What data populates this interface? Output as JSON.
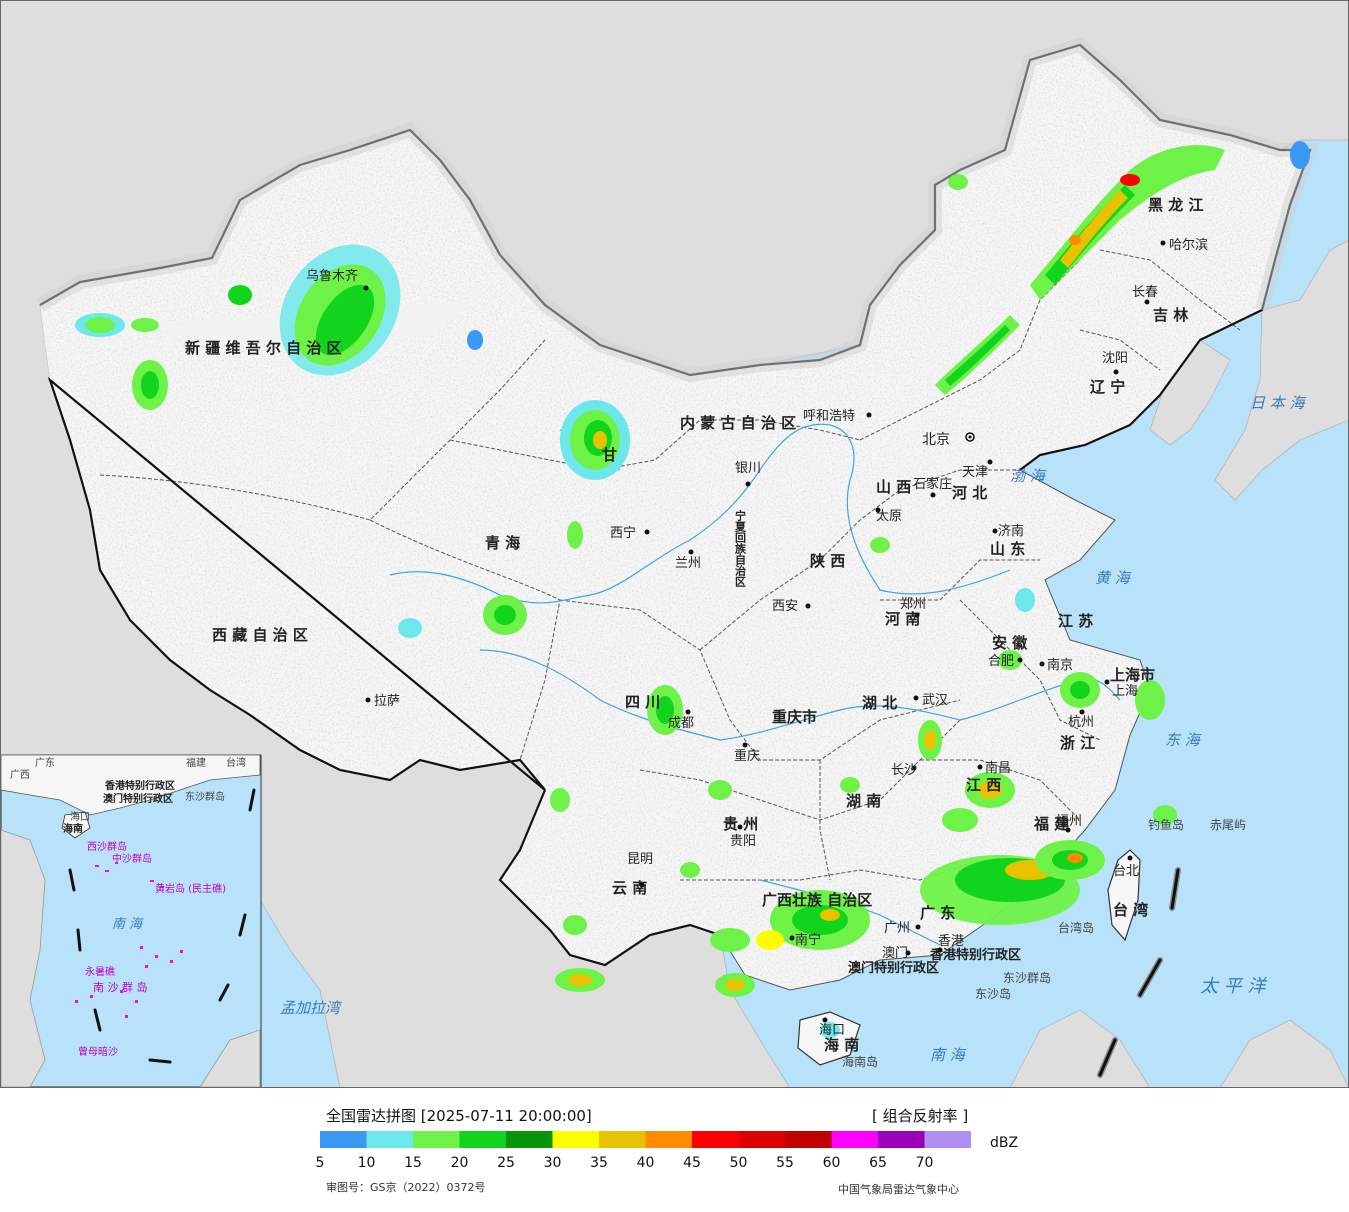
{
  "colors": {
    "sea": "#b8e2f9",
    "foreign_land": "#dedede",
    "china_land": "#f6f6f6",
    "border": "#111111"
  },
  "provinces": [
    {
      "id": "xinjiang",
      "label": "新 疆 维 吾 尔 自 治 区"
    },
    {
      "id": "xizang",
      "label": "西 藏 自 治 区"
    },
    {
      "id": "qinghai",
      "label": "青 海"
    },
    {
      "id": "gansu",
      "label": "甘"
    },
    {
      "id": "sichuan",
      "label": "四 川"
    },
    {
      "id": "yunnan",
      "label": "云 南"
    },
    {
      "id": "guizhou",
      "label": "贵 州"
    },
    {
      "id": "chongqing",
      "label": "重庆市"
    },
    {
      "id": "shaanxi",
      "label": "陕 西"
    },
    {
      "id": "shanxi",
      "label": "山 西"
    },
    {
      "id": "henan",
      "label": "河 南"
    },
    {
      "id": "hubei",
      "label": "湖 北"
    },
    {
      "id": "hunan",
      "label": "湖 南"
    },
    {
      "id": "jiangxi",
      "label": "江 西"
    },
    {
      "id": "anhui",
      "label": "安 徽"
    },
    {
      "id": "jiangsu",
      "label": "江 苏"
    },
    {
      "id": "zhejiang",
      "label": "浙 江"
    },
    {
      "id": "fujian",
      "label": "福 建"
    },
    {
      "id": "guangdong",
      "label": "广 东"
    },
    {
      "id": "guangxi",
      "label": "广西壮族 自治区"
    },
    {
      "id": "hainan",
      "label": "海 南"
    },
    {
      "id": "shandong",
      "label": "山 东"
    },
    {
      "id": "hebei",
      "label": "河 北"
    },
    {
      "id": "neimenggu",
      "label": "内 蒙 古 自 治 区"
    },
    {
      "id": "heilongjiang",
      "label": "黑 龙 江"
    },
    {
      "id": "jilin",
      "label": "吉 林"
    },
    {
      "id": "liaoning",
      "label": "辽 宁"
    },
    {
      "id": "ningxia",
      "label": "宁夏回族自治区"
    },
    {
      "id": "taiwan",
      "label": "台 湾"
    },
    {
      "id": "shanghai",
      "label": "上海市"
    },
    {
      "id": "hongkong",
      "label": "香港特别行政区"
    },
    {
      "id": "macau",
      "label": "澳门特别行政区"
    }
  ],
  "cities": [
    {
      "id": "urumqi",
      "label": "乌鲁木齐"
    },
    {
      "id": "lhasa",
      "label": "拉萨"
    },
    {
      "id": "xining",
      "label": "西宁"
    },
    {
      "id": "lanzhou",
      "label": "兰州"
    },
    {
      "id": "yinchuan",
      "label": "银川"
    },
    {
      "id": "hohhot",
      "label": "呼和浩特"
    },
    {
      "id": "beijing",
      "label": "北京"
    },
    {
      "id": "tianjin",
      "label": "天津"
    },
    {
      "id": "shijiazhuang",
      "label": "石家庄"
    },
    {
      "id": "taiyuan",
      "label": "太原"
    },
    {
      "id": "jinan",
      "label": "济南"
    },
    {
      "id": "zhengzhou",
      "label": "郑州"
    },
    {
      "id": "xian",
      "label": "西安"
    },
    {
      "id": "chengdu",
      "label": "成都"
    },
    {
      "id": "chongqing_city",
      "label": "重庆"
    },
    {
      "id": "wuhan",
      "label": "武汉"
    },
    {
      "id": "hefei",
      "label": "合肥"
    },
    {
      "id": "nanjing",
      "label": "南京"
    },
    {
      "id": "shanghai_city",
      "label": "上海"
    },
    {
      "id": "hangzhou",
      "label": "杭州"
    },
    {
      "id": "nanchang",
      "label": "南昌"
    },
    {
      "id": "changsha",
      "label": "长沙"
    },
    {
      "id": "guiyang",
      "label": "贵阳"
    },
    {
      "id": "kunming",
      "label": "昆明"
    },
    {
      "id": "nanning",
      "label": "南宁"
    },
    {
      "id": "guangzhou",
      "label": "广州"
    },
    {
      "id": "macau_city",
      "label": "澳门"
    },
    {
      "id": "hongkong_city",
      "label": "香港"
    },
    {
      "id": "fuzhou",
      "label": "福州"
    },
    {
      "id": "taipei",
      "label": "台北"
    },
    {
      "id": "haikou",
      "label": "海口"
    },
    {
      "id": "shenyang",
      "label": "沈阳"
    },
    {
      "id": "changchun",
      "label": "长春"
    },
    {
      "id": "harbin",
      "label": "哈尔滨"
    }
  ],
  "seas": [
    {
      "id": "japan_sea",
      "label": "日 本 海"
    },
    {
      "id": "bohai",
      "label": "渤 海"
    },
    {
      "id": "yellow_sea",
      "label": "黄 海"
    },
    {
      "id": "east_sea",
      "label": "东 海"
    },
    {
      "id": "south_sea",
      "label": "南 海"
    },
    {
      "id": "pacific",
      "label": "太 平 洋"
    },
    {
      "id": "bengal",
      "label": "孟加拉湾"
    }
  ],
  "islands": [
    {
      "id": "diaoyu",
      "label": "钓鱼岛"
    },
    {
      "id": "chiwei",
      "label": "赤尾屿"
    },
    {
      "id": "taiwan_island",
      "label": "台湾岛"
    },
    {
      "id": "dongsha_islands",
      "label": "东沙群岛"
    },
    {
      "id": "dongsha_island",
      "label": "东沙岛"
    },
    {
      "id": "hainan_island",
      "label": "海南岛"
    }
  ],
  "inset": {
    "labels": [
      {
        "id": "guangdong",
        "label": "广东"
      },
      {
        "id": "guangxi",
        "label": "广西"
      },
      {
        "id": "taiwan",
        "label": "台湾"
      },
      {
        "id": "fujian",
        "label": "福建"
      },
      {
        "id": "hk",
        "label": "香港特别行政区"
      },
      {
        "id": "macau",
        "label": "澳门特别行政区"
      },
      {
        "id": "dongsha",
        "label": "东沙群岛"
      },
      {
        "id": "haikou",
        "label": "海口"
      },
      {
        "id": "hainan",
        "label": "海南"
      },
      {
        "id": "xisha",
        "label": "西沙群岛"
      },
      {
        "id": "zhongsha",
        "label": "中沙群岛"
      },
      {
        "id": "huangyan",
        "label": "黄岩岛 (民主礁)"
      },
      {
        "id": "nanhai",
        "label": "南 海"
      },
      {
        "id": "yongshu",
        "label": "永暑礁"
      },
      {
        "id": "nansha",
        "label": "南 沙 群 岛"
      },
      {
        "id": "zengmu",
        "label": "曾母暗沙"
      }
    ]
  },
  "legend": {
    "title": "全国雷达拼图 [2025-07-11 20:00:00]",
    "product": "[ 组合反射率 ]",
    "unit": "dBZ",
    "ticks": [
      "5",
      "10",
      "15",
      "20",
      "25",
      "30",
      "35",
      "40",
      "45",
      "50",
      "55",
      "60",
      "65",
      "70"
    ],
    "colors": [
      "#3a97f3",
      "#6de8ea",
      "#6ef248",
      "#11d41c",
      "#079607",
      "#fdfd00",
      "#e8c100",
      "#ff8c00",
      "#ff0000",
      "#dc0000",
      "#c00000",
      "#ff00ff",
      "#9a00b8",
      "#ad90f0"
    ],
    "approval": "审图号：GS京（2022）0372号",
    "source": "中国气象局雷达气象中心"
  }
}
